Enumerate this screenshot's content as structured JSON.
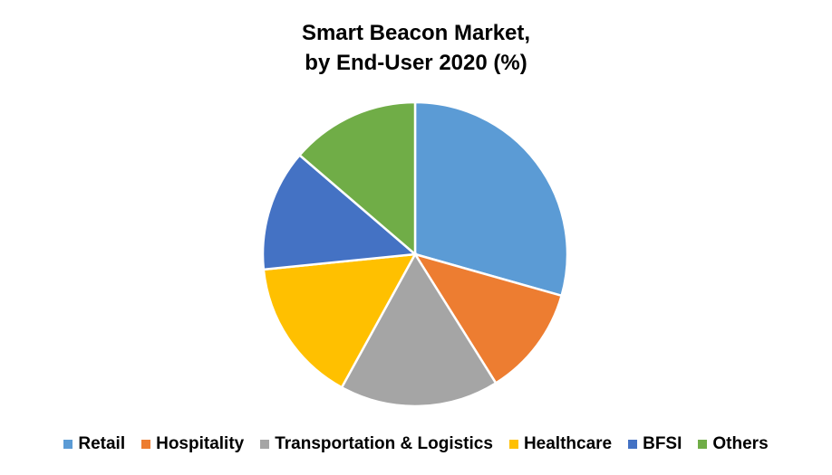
{
  "chart_data": {
    "type": "pie",
    "title_line1": "Smart Beacon Market,",
    "title_line2": "by End-User 2020 (%)",
    "categories": [
      "Retail",
      "Hospitality",
      "Transportation & Logistics",
      "Healthcare",
      "BFSI",
      "Others"
    ],
    "values": [
      29.4,
      11.7,
      16.9,
      15.4,
      12.9,
      13.7
    ],
    "colors": [
      "#5B9BD5",
      "#ED7D31",
      "#A5A5A5",
      "#FFC000",
      "#4472C4",
      "#70AD47"
    ],
    "legend_position": "bottom"
  }
}
